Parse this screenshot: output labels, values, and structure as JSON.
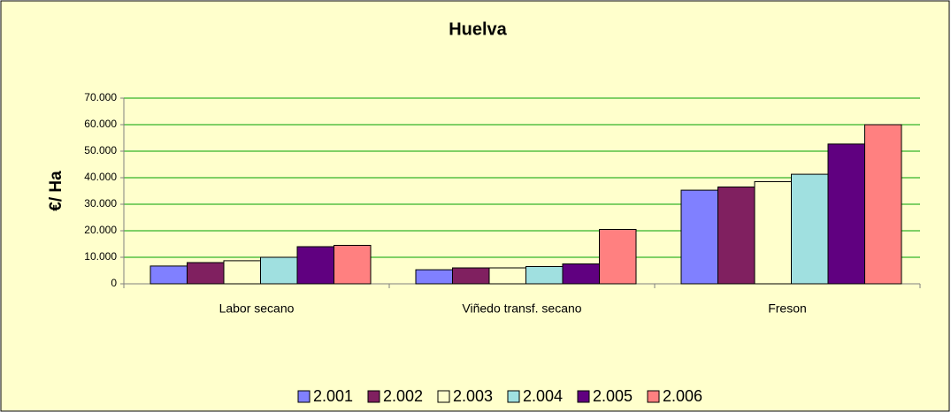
{
  "chart_data": {
    "type": "bar",
    "title": "Huelva",
    "y_label": "€/ Ha",
    "categories": [
      "Labor secano",
      "Viñedo transf. secano",
      "Freson"
    ],
    "series": [
      {
        "name": "2.001",
        "color": "#8080ff",
        "values": [
          6700,
          5300,
          35300
        ]
      },
      {
        "name": "2.002",
        "color": "#802060",
        "values": [
          8000,
          6000,
          36500
        ]
      },
      {
        "name": "2.003",
        "color": "#ffffcc",
        "values": [
          8700,
          6000,
          38500
        ]
      },
      {
        "name": "2.004",
        "color": "#a0e0e0",
        "values": [
          10000,
          6500,
          41300
        ]
      },
      {
        "name": "2.005",
        "color": "#600080",
        "values": [
          14000,
          7500,
          52700
        ]
      },
      {
        "name": "2.006",
        "color": "#ff8080",
        "values": [
          14500,
          20500,
          60000
        ]
      }
    ],
    "ylim": [
      0,
      70000
    ],
    "yticks": [
      0,
      {
        "value": 10000,
        "label": "10.000"
      },
      {
        "value": 20000,
        "label": "20.000"
      },
      {
        "value": 30000,
        "label": "30.000"
      },
      {
        "value": 40000,
        "label": "40.000"
      },
      {
        "value": 50000,
        "label": "50.000"
      },
      {
        "value": 60000,
        "label": "60.000"
      },
      {
        "value": 70000,
        "label": "70.000"
      }
    ],
    "grid": true,
    "legend": "bottom"
  }
}
